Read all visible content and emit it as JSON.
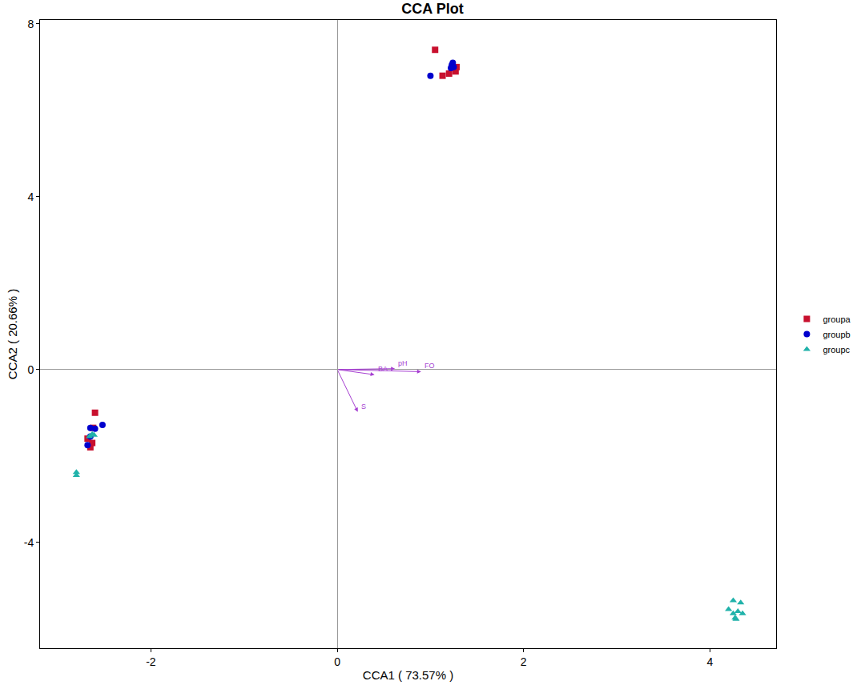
{
  "chart_data": {
    "type": "scatter",
    "title": "CCA Plot",
    "x_label": "CCA1 ( 73.57% )",
    "y_label": "CCA2 ( 20.66% )",
    "xlim": [
      -3.19,
      4.71
    ],
    "ylim": [
      -6.45,
      8.09
    ],
    "xticks": [
      -2,
      0,
      2,
      4
    ],
    "yticks": [
      -4,
      0,
      4,
      8
    ],
    "grid": false,
    "legend": "right",
    "series": [
      {
        "name": "groupa",
        "color": "#c8102e",
        "marker": "square",
        "x": [
          1.05,
          1.13,
          1.2,
          1.28,
          1.27,
          -2.6,
          -2.65,
          -2.63,
          -2.68,
          -2.62
        ],
        "y": [
          7.4,
          6.8,
          6.85,
          7.0,
          6.9,
          -1.0,
          -1.8,
          -1.7,
          -1.6,
          -1.35
        ]
      },
      {
        "name": "groupb",
        "color": "#0000cd",
        "marker": "circle",
        "x": [
          1.0,
          1.23,
          1.24,
          1.22,
          1.25,
          -2.52,
          -2.65,
          -2.6,
          -2.68,
          -2.65
        ],
        "y": [
          6.8,
          7.05,
          7.1,
          6.98,
          7.0,
          -1.28,
          -1.35,
          -1.37,
          -1.75,
          -1.55
        ]
      },
      {
        "name": "groupc",
        "color": "#20b2aa",
        "marker": "triangle-up",
        "x": [
          -2.8,
          -2.8,
          -2.63,
          -2.66,
          -2.61,
          4.25,
          4.33,
          4.2,
          4.3,
          4.25,
          4.35,
          4.27,
          4.28
        ],
        "y": [
          -2.45,
          -2.38,
          -1.5,
          -1.55,
          -1.52,
          -5.35,
          -5.4,
          -5.55,
          -5.6,
          -5.65,
          -5.65,
          -5.75,
          -5.78
        ]
      }
    ],
    "arrows": [
      {
        "label": "pH",
        "x": 0.62,
        "y": 0.02
      },
      {
        "label": "BA",
        "x": 0.4,
        "y": -0.12
      },
      {
        "label": "FO",
        "x": 0.9,
        "y": -0.05
      },
      {
        "label": "S",
        "x": 0.22,
        "y": -0.98
      }
    ],
    "arrow_color": "#a63fd1"
  }
}
